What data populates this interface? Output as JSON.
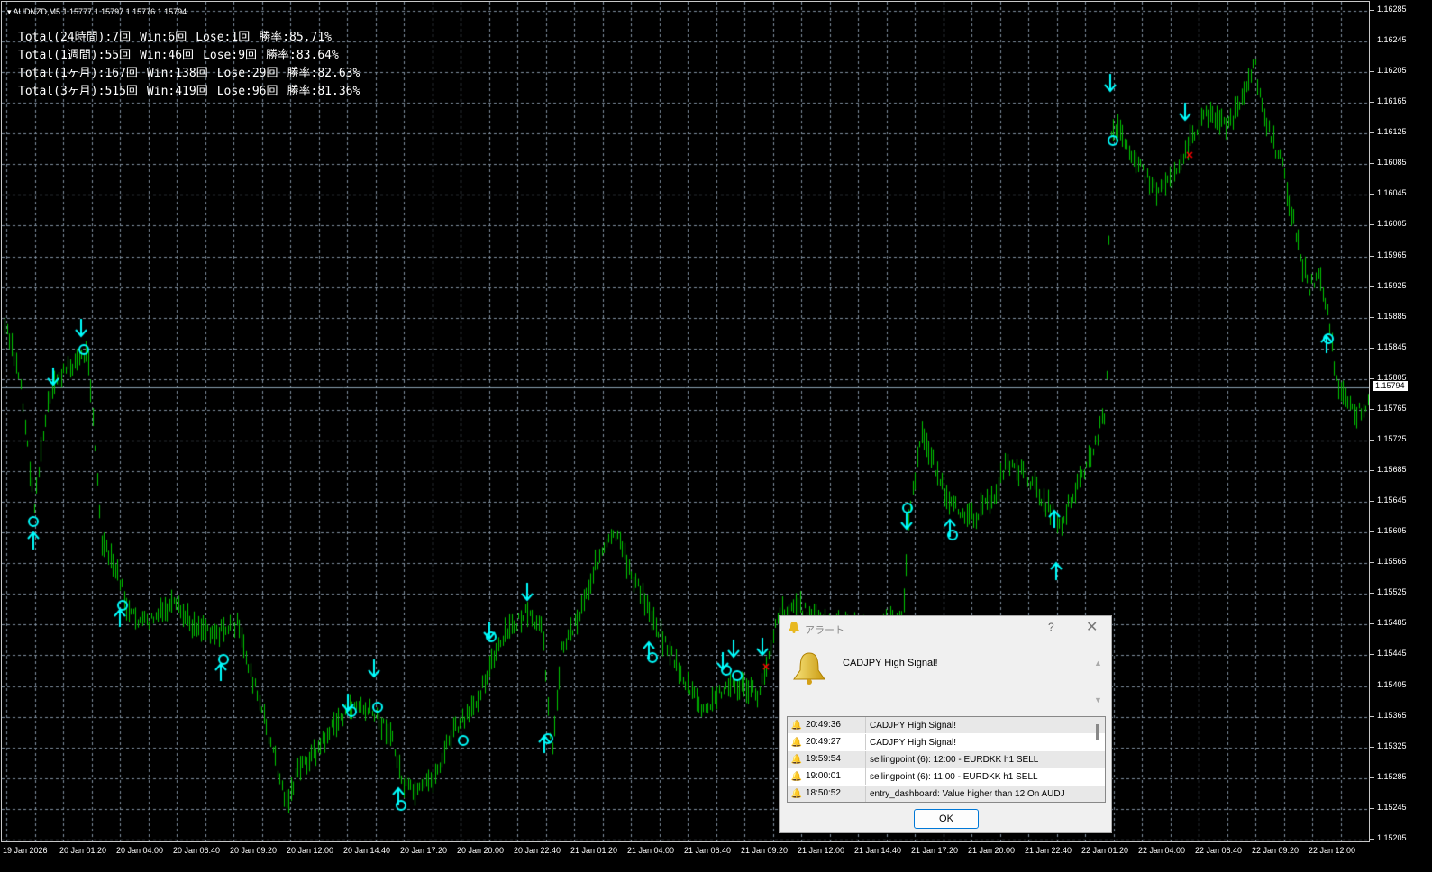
{
  "header": {
    "symbol_line": "AUDNZD,M5  1.15777 1.15797 1.15776 1.15794"
  },
  "stats": [
    {
      "total": "Total(24時間):7回",
      "win": "Win:6回",
      "lose": "Lose:1回",
      "rate": "勝率:85.71%"
    },
    {
      "total": "Total(1週間):55回",
      "win": "Win:46回",
      "lose": "Lose:9回",
      "rate": "勝率:83.64%"
    },
    {
      "total": "Total(1ヶ月):167回",
      "win": "Win:138回",
      "lose": "Lose:29回",
      "rate": "勝率:82.63%"
    },
    {
      "total": "Total(3ヶ月):515回",
      "win": "Win:419回",
      "lose": "Lose:96回",
      "rate": "勝率:81.36%"
    }
  ],
  "price_axis": [
    "1.16285",
    "1.16245",
    "1.16205",
    "1.16165",
    "1.16125",
    "1.16085",
    "1.16045",
    "1.16005",
    "1.15965",
    "1.15925",
    "1.15885",
    "1.15845",
    "1.15805",
    "1.15765",
    "1.15725",
    "1.15685",
    "1.15645",
    "1.15605",
    "1.15565",
    "1.15525",
    "1.15485",
    "1.15445",
    "1.15405",
    "1.15365",
    "1.15325",
    "1.15285",
    "1.15245",
    "1.15205"
  ],
  "current_price": "1.15794",
  "time_axis": [
    "19 Jan 2026",
    "20 Jan 01:20",
    "20 Jan 04:00",
    "20 Jan 06:40",
    "20 Jan 09:20",
    "20 Jan 12:00",
    "20 Jan 14:40",
    "20 Jan 17:20",
    "20 Jan 20:00",
    "20 Jan 22:40",
    "21 Jan 01:20",
    "21 Jan 04:00",
    "21 Jan 06:40",
    "21 Jan 09:20",
    "21 Jan 12:00",
    "21 Jan 14:40",
    "21 Jan 17:20",
    "21 Jan 20:00",
    "21 Jan 22:40",
    "22 Jan 01:20",
    "22 Jan 04:00",
    "22 Jan 06:40",
    "22 Jan 09:20",
    "22 Jan 12:00"
  ],
  "colors": {
    "candle": "#00c800",
    "signal": "#00ffff",
    "loss_mark": "#ff0000",
    "grid": "#8090a0"
  },
  "alert": {
    "title": "アラート",
    "help": "?",
    "close": "✕",
    "message": "CADJPY High Signal!",
    "ok": "OK",
    "rows": [
      {
        "time": "20:49:36",
        "text": "CADJPY High Signal!"
      },
      {
        "time": "20:49:27",
        "text": "CADJPY High Signal!"
      },
      {
        "time": "19:59:54",
        "text": "sellingpoint (6): 12:00 - EURDKK h1 SELL"
      },
      {
        "time": "19:00:01",
        "text": "sellingpoint (6): 11:00 - EURDKK h1 SELL"
      },
      {
        "time": "18:50:52",
        "text": "entry_dashboard: Value higher than 12 On AUDJ"
      }
    ]
  }
}
